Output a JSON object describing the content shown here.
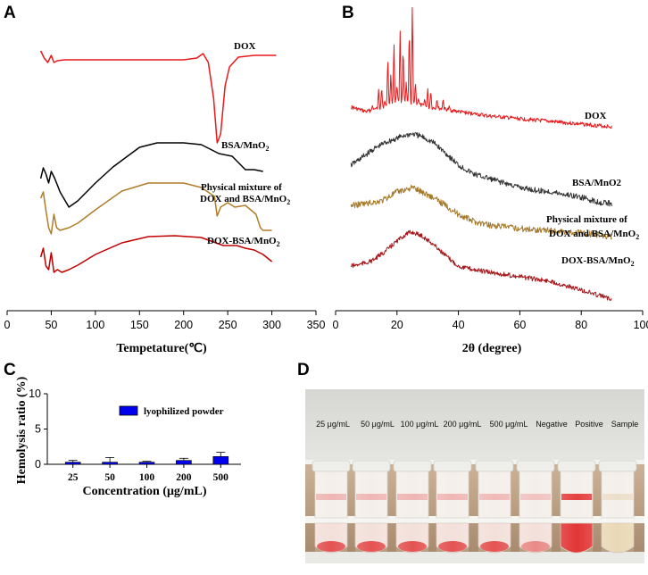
{
  "chart_data": [
    {
      "panel": "A",
      "type": "line",
      "title": "",
      "xlabel": "Tempetature(℃)",
      "ylabel": "",
      "xlim": [
        0,
        350
      ],
      "xticks": [
        0,
        50,
        100,
        150,
        200,
        250,
        300,
        350
      ],
      "series": [
        {
          "name": "DOX",
          "color": "#e8191b",
          "x": [
            38,
            42,
            46,
            50,
            53,
            57,
            65,
            100,
            150,
            200,
            215,
            222,
            228,
            234,
            238,
            242,
            247,
            252,
            262,
            280,
            290,
            305
          ],
          "y": [
            57,
            65,
            70,
            62,
            70,
            68,
            67,
            67,
            67,
            67,
            65,
            60,
            70,
            110,
            160,
            150,
            96,
            75,
            64,
            62,
            62,
            62
          ]
        },
        {
          "name": "BSA/MnO2",
          "color": "#000000",
          "x": [
            38,
            41,
            44,
            47,
            50,
            54,
            60,
            70,
            80,
            100,
            120,
            150,
            170,
            200,
            220,
            240,
            255,
            262,
            270,
            280,
            290
          ],
          "y": [
            200,
            188,
            195,
            205,
            192,
            200,
            215,
            232,
            225,
            205,
            187,
            165,
            160,
            160,
            162,
            172,
            175,
            182,
            190,
            190,
            192
          ]
        },
        {
          "name": "Physical mixture of DOX and BSA/MnO2",
          "color": "#b07d29",
          "x": [
            38,
            41,
            44,
            47,
            50,
            53,
            56,
            60,
            70,
            80,
            100,
            130,
            160,
            200,
            220,
            235,
            238,
            242,
            250,
            258,
            270,
            282,
            287,
            290,
            300
          ],
          "y": [
            222,
            215,
            236,
            255,
            262,
            240,
            255,
            258,
            255,
            250,
            235,
            214,
            205,
            205,
            210,
            220,
            242,
            232,
            227,
            232,
            230,
            240,
            255,
            258,
            258
          ]
        },
        {
          "name": "DOX-BSA/MnO2",
          "color": "#c00000",
          "x": [
            38,
            41,
            44,
            47,
            50,
            53,
            57,
            62,
            70,
            80,
            100,
            130,
            160,
            190,
            220,
            245,
            260,
            270,
            280,
            290,
            300
          ],
          "y": [
            288,
            278,
            298,
            302,
            283,
            305,
            302,
            305,
            302,
            297,
            285,
            272,
            265,
            264,
            266,
            275,
            275,
            278,
            280,
            285,
            293
          ]
        }
      ]
    },
    {
      "panel": "B",
      "type": "line",
      "title": "",
      "xlabel": "2θ (degree)",
      "ylabel": "",
      "xlim": [
        0,
        100
      ],
      "xticks": [
        0,
        20,
        40,
        60,
        80,
        100
      ],
      "series": [
        {
          "name": "DOX",
          "color": "#e8191b",
          "x": [
            5,
            10,
            15,
            20,
            25,
            30,
            35,
            40,
            50,
            60,
            70,
            80,
            90
          ],
          "y": [
            120,
            125,
            120,
            112,
            115,
            120,
            122,
            125,
            130,
            133,
            136,
            139,
            142
          ]
        },
        {
          "name": "BSA/MnO2",
          "color": "#333333",
          "x": [
            5,
            8,
            12,
            16,
            20,
            22,
            25,
            28,
            32,
            36,
            40,
            45,
            50,
            55,
            60,
            65,
            70,
            75,
            80,
            85,
            90
          ],
          "y": [
            185,
            178,
            168,
            160,
            155,
            152,
            150,
            153,
            160,
            172,
            185,
            195,
            200,
            205,
            210,
            213,
            215,
            218,
            221,
            226,
            228
          ]
        },
        {
          "name": "Physical mixture of DOX and BSA/MnO2",
          "color": "#a67a2a",
          "x": [
            5,
            10,
            15,
            20,
            25,
            30,
            35,
            40,
            45,
            50,
            60,
            70,
            80,
            90
          ],
          "y": [
            230,
            228,
            225,
            215,
            210,
            218,
            228,
            240,
            248,
            252,
            256,
            258,
            261,
            265
          ]
        },
        {
          "name": "DOX-BSA/MnO2",
          "color": "#a4161a",
          "x": [
            5,
            8,
            12,
            16,
            20,
            23,
            25,
            28,
            32,
            36,
            40,
            45,
            50,
            60,
            70,
            80,
            90
          ],
          "y": [
            298,
            296,
            292,
            282,
            270,
            262,
            260,
            264,
            274,
            287,
            298,
            302,
            305,
            310,
            315,
            325,
            335
          ]
        }
      ],
      "peaks_note": "sharp crystalline peaks on DOX trace",
      "dox_peaks": [
        [
          8,
          133
        ],
        [
          10,
          128
        ],
        [
          12,
          118
        ],
        [
          13,
          122
        ],
        [
          14,
          100
        ],
        [
          15,
          96
        ],
        [
          16,
          113
        ],
        [
          17,
          60
        ],
        [
          18,
          80
        ],
        [
          19,
          42
        ],
        [
          20,
          95
        ],
        [
          21,
          30
        ],
        [
          22,
          48
        ],
        [
          23,
          92
        ],
        [
          24,
          25
        ],
        [
          25,
          2
        ],
        [
          26,
          90
        ],
        [
          27,
          110
        ],
        [
          29,
          110
        ],
        [
          30,
          98
        ],
        [
          31,
          100
        ],
        [
          33,
          110
        ],
        [
          35,
          110
        ],
        [
          37,
          118
        ],
        [
          40,
          126
        ],
        [
          45,
          128
        ]
      ]
    },
    {
      "panel": "C",
      "type": "bar",
      "title": "",
      "xlabel": "Concentration (μg/mL)",
      "ylabel": "Hemolysis ratio (%)",
      "ylim": [
        0,
        10
      ],
      "yticks": [
        "0",
        "5",
        "10"
      ],
      "categories": [
        "25",
        "50",
        "100",
        "200",
        "500"
      ],
      "series": [
        {
          "name": "lyophilized powder",
          "color": "#0000ee",
          "values": [
            0.3,
            0.3,
            0.3,
            0.55,
            1.1
          ],
          "errors": [
            0.25,
            0.65,
            0.12,
            0.3,
            0.6
          ]
        }
      ]
    }
  ],
  "panels": {
    "a": "A",
    "b": "B",
    "c": "C",
    "d": "D"
  },
  "photo": {
    "labels": [
      "25 μg/mL",
      "50 μg/mL",
      "100 μg/mL",
      "200 μg/mL",
      "500 μg/mL",
      "Negative",
      "Positive",
      "Sample"
    ],
    "tube_colors": [
      "#e98a8a",
      "#eb8c8c",
      "#ea8888",
      "#ec8b8b",
      "#ec9090",
      "#eda0a0",
      "#e22a2a",
      "#e6d2b0"
    ]
  }
}
